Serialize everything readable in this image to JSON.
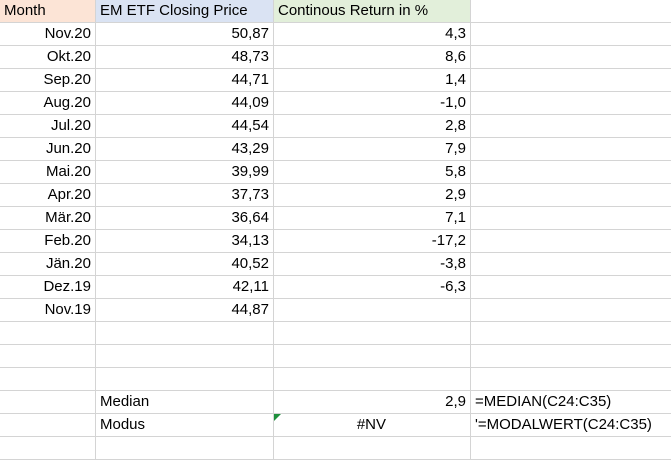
{
  "headers": {
    "month": "Month",
    "price": "EM ETF Closing Price",
    "ret": "Continous Return in %"
  },
  "rows": [
    {
      "month": "Nov.20",
      "price": "50,87",
      "ret": "4,3"
    },
    {
      "month": "Okt.20",
      "price": "48,73",
      "ret": "8,6"
    },
    {
      "month": "Sep.20",
      "price": "44,71",
      "ret": "1,4"
    },
    {
      "month": "Aug.20",
      "price": "44,09",
      "ret": "-1,0"
    },
    {
      "month": "Jul.20",
      "price": "44,54",
      "ret": "2,8"
    },
    {
      "month": "Jun.20",
      "price": "43,29",
      "ret": "7,9"
    },
    {
      "month": "Mai.20",
      "price": "39,99",
      "ret": "5,8"
    },
    {
      "month": "Apr.20",
      "price": "37,73",
      "ret": "2,9"
    },
    {
      "month": "Mär.20",
      "price": "36,64",
      "ret": "7,1"
    },
    {
      "month": "Feb.20",
      "price": "34,13",
      "ret": "-17,2"
    },
    {
      "month": "Jän.20",
      "price": "40,52",
      "ret": "-3,8"
    },
    {
      "month": "Dez.19",
      "price": "42,11",
      "ret": "-6,3"
    },
    {
      "month": "Nov.19",
      "price": "44,87",
      "ret": ""
    }
  ],
  "summary": {
    "median_label": "Median",
    "median_value": "2,9",
    "median_formula": "=MEDIAN(C24:C35)",
    "modus_label": "Modus",
    "modus_value": "#NV",
    "modus_formula": "'=MODALWERT(C24:C35)"
  },
  "colors": {
    "header_month": "#fce4d6",
    "header_price": "#dae3f3",
    "header_return": "#e2efda",
    "gridline": "#d4d4d4",
    "error_indicator": "#1e8f3c"
  }
}
